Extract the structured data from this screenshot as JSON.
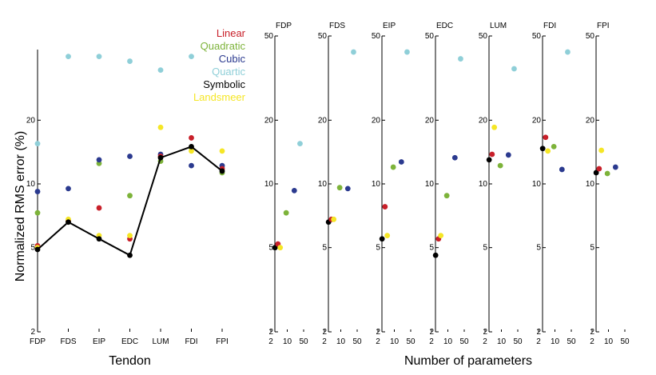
{
  "colors": {
    "Linear": "#c8202a",
    "Quadratic": "#7db33a",
    "Cubic": "#2b3a8f",
    "Quartic": "#8fcfd8",
    "Symbolic": "#000000",
    "Landsmeer": "#f5e626"
  },
  "chart_data": [
    {
      "type": "line",
      "title": "",
      "xlabel": "Tendon",
      "ylabel": "Normalized RMS error (%)",
      "yscale": "log",
      "ylim": [
        2,
        50
      ],
      "yticks": [
        2,
        5,
        10,
        20
      ],
      "categories": [
        "FDP",
        "FDS",
        "EIP",
        "EDC",
        "LUM",
        "FDI",
        "FPI"
      ],
      "legend_position": "top-right",
      "legend": [
        "Linear",
        "Quadratic",
        "Cubic",
        "Quartic",
        "Symbolic",
        "Landsmeer"
      ],
      "series": [
        {
          "name": "Linear",
          "mode": "markers",
          "values": [
            5.1,
            6.7,
            7.7,
            5.5,
            13.5,
            16.5,
            11.8
          ]
        },
        {
          "name": "Quadratic",
          "mode": "markers",
          "values": [
            7.3,
            6.6,
            12.5,
            8.8,
            12.8,
            14.8,
            11.3
          ]
        },
        {
          "name": "Cubic",
          "mode": "markers",
          "values": [
            9.2,
            9.5,
            13.0,
            13.5,
            13.8,
            12.2,
            12.2
          ]
        },
        {
          "name": "Quartic",
          "mode": "markers",
          "values": [
            15.5,
            40,
            40,
            38,
            34.5,
            40,
            12.0
          ]
        },
        {
          "name": "Symbolic",
          "mode": "line",
          "values": [
            4.9,
            6.6,
            5.5,
            4.6,
            13.3,
            15.0,
            11.5
          ]
        },
        {
          "name": "Landsmeer",
          "mode": "markers",
          "values": [
            5.0,
            6.8,
            5.7,
            5.7,
            18.5,
            14.3,
            14.3
          ]
        }
      ]
    },
    {
      "type": "scatter",
      "xlabel": "Number of parameters",
      "xscale": "log",
      "xticks": [
        2,
        10,
        50
      ],
      "yscale": "log",
      "ylim": [
        2,
        50
      ],
      "yticks": [
        2,
        5,
        10,
        20,
        50
      ],
      "panels": [
        {
          "title": "FDP",
          "points": [
            {
              "series": "Symbolic",
              "x": 3,
              "y": 5.0
            },
            {
              "series": "Linear",
              "x": 4,
              "y": 5.2
            },
            {
              "series": "Landsmeer",
              "x": 5,
              "y": 5.0
            },
            {
              "series": "Quadratic",
              "x": 9,
              "y": 7.3
            },
            {
              "series": "Cubic",
              "x": 20,
              "y": 9.3
            },
            {
              "series": "Quartic",
              "x": 35,
              "y": 15.5
            }
          ]
        },
        {
          "title": "FDS",
          "points": [
            {
              "series": "Symbolic",
              "x": 3,
              "y": 6.6
            },
            {
              "series": "Linear",
              "x": 4,
              "y": 6.8
            },
            {
              "series": "Landsmeer",
              "x": 5,
              "y": 6.8
            },
            {
              "series": "Quadratic",
              "x": 9,
              "y": 9.6
            },
            {
              "series": "Cubic",
              "x": 20,
              "y": 9.5
            },
            {
              "series": "Quartic",
              "x": 35,
              "y": 42
            }
          ]
        },
        {
          "title": "EIP",
          "points": [
            {
              "series": "Symbolic",
              "x": 3,
              "y": 5.5
            },
            {
              "series": "Linear",
              "x": 4,
              "y": 7.8
            },
            {
              "series": "Landsmeer",
              "x": 5,
              "y": 5.7
            },
            {
              "series": "Quadratic",
              "x": 9,
              "y": 12.0
            },
            {
              "series": "Cubic",
              "x": 20,
              "y": 12.7
            },
            {
              "series": "Quartic",
              "x": 35,
              "y": 42
            }
          ]
        },
        {
          "title": "EDC",
          "points": [
            {
              "series": "Symbolic",
              "x": 3,
              "y": 4.6
            },
            {
              "series": "Linear",
              "x": 4,
              "y": 5.5
            },
            {
              "series": "Landsmeer",
              "x": 5,
              "y": 5.7
            },
            {
              "series": "Quadratic",
              "x": 9,
              "y": 8.8
            },
            {
              "series": "Cubic",
              "x": 20,
              "y": 13.3
            },
            {
              "series": "Quartic",
              "x": 35,
              "y": 39
            }
          ]
        },
        {
          "title": "LUM",
          "points": [
            {
              "series": "Symbolic",
              "x": 3,
              "y": 13.0
            },
            {
              "series": "Linear",
              "x": 4,
              "y": 13.8
            },
            {
              "series": "Landsmeer",
              "x": 5,
              "y": 18.5
            },
            {
              "series": "Quadratic",
              "x": 9,
              "y": 12.2
            },
            {
              "series": "Cubic",
              "x": 20,
              "y": 13.7
            },
            {
              "series": "Quartic",
              "x": 35,
              "y": 35
            }
          ]
        },
        {
          "title": "FDI",
          "points": [
            {
              "series": "Symbolic",
              "x": 3,
              "y": 14.7
            },
            {
              "series": "Linear",
              "x": 4,
              "y": 16.6
            },
            {
              "series": "Landsmeer",
              "x": 5,
              "y": 14.3
            },
            {
              "series": "Quadratic",
              "x": 9,
              "y": 15.0
            },
            {
              "series": "Cubic",
              "x": 20,
              "y": 11.7
            },
            {
              "series": "Quartic",
              "x": 35,
              "y": 42
            }
          ]
        },
        {
          "title": "FPI",
          "points": [
            {
              "series": "Symbolic",
              "x": 3,
              "y": 11.3
            },
            {
              "series": "Linear",
              "x": 4,
              "y": 11.8
            },
            {
              "series": "Landsmeer",
              "x": 5,
              "y": 14.4
            },
            {
              "series": "Quadratic",
              "x": 9,
              "y": 11.2
            },
            {
              "series": "Cubic",
              "x": 20,
              "y": 12.0
            }
          ]
        }
      ]
    }
  ]
}
